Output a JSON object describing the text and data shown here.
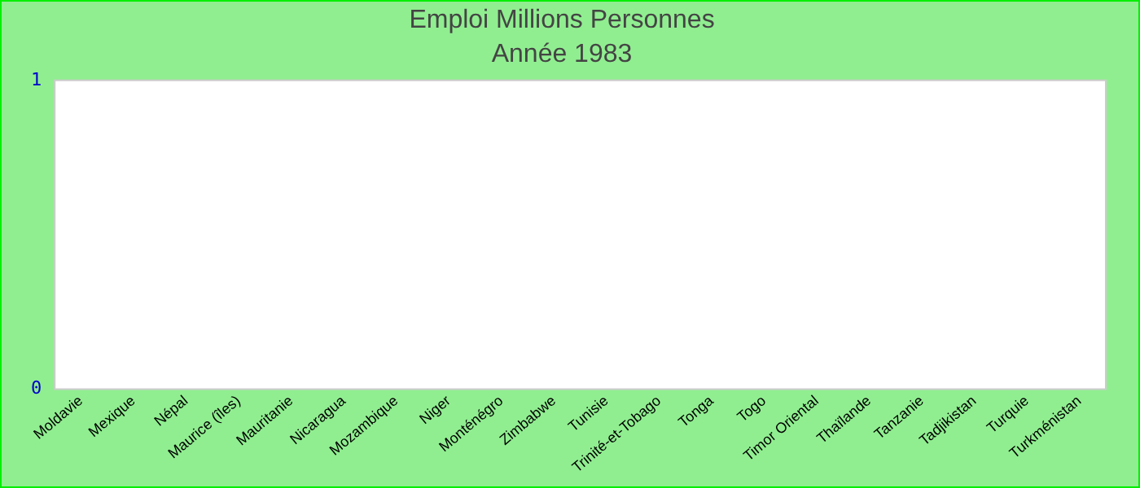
{
  "chart_data": {
    "type": "bar",
    "title": "Emploi Millions Personnes",
    "subtitle": "Année 1983",
    "categories": [
      "Moldavie",
      "Mexique",
      "Népal",
      "Maurice (îles)",
      "Mauritanie",
      "Nicaragua",
      "Mozambique",
      "Niger",
      "Monténégro",
      "Zimbabwe",
      "Tunisie",
      "Trinité-et-Tobago",
      "Tonga",
      "Togo",
      "Timor Oriental",
      "Thaïlande",
      "Tanzanie",
      "Tadjikistan",
      "Turquie",
      "Turkménistan"
    ],
    "values": [
      0,
      0,
      0,
      0,
      0,
      0,
      0,
      0,
      0,
      0,
      0,
      0,
      0,
      0,
      0,
      0,
      0,
      0,
      0,
      0
    ],
    "ylim": [
      0,
      1
    ],
    "yticks": [
      0,
      1
    ],
    "grid": false,
    "legend": false
  }
}
